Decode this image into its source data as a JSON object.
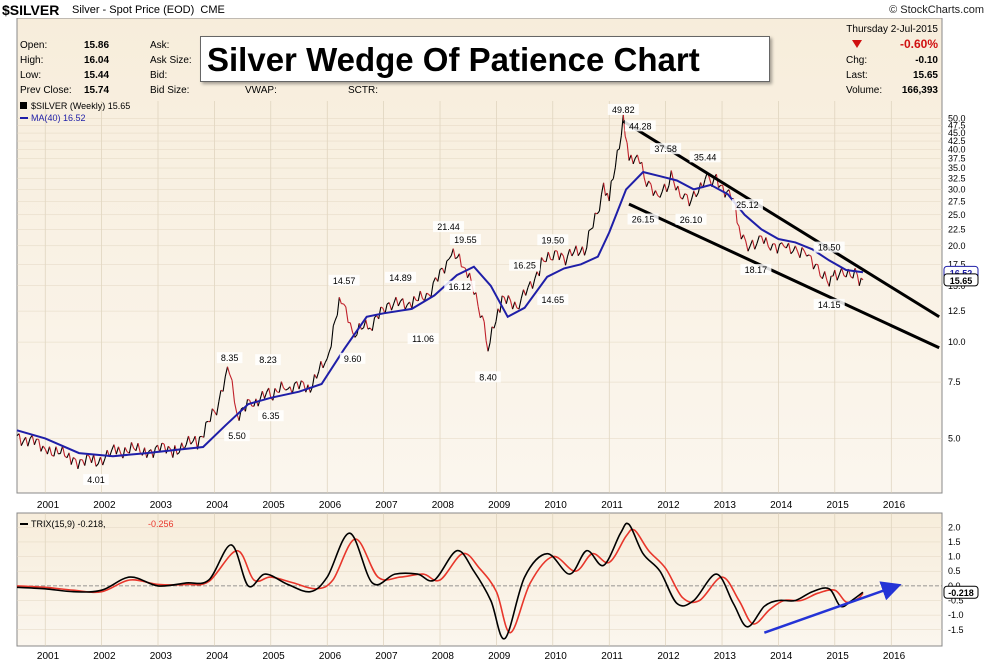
{
  "header": {
    "symbol": "$SILVER",
    "description": "Silver - Spot Price (EOD)",
    "exchange": "CME",
    "brand": "© StockCharts.com"
  },
  "quote_panel": {
    "open_label": "Open:",
    "open": "15.86",
    "high_label": "High:",
    "high": "16.04",
    "low_label": "Low:",
    "low": "15.44",
    "prev_close_label": "Prev Close:",
    "prev_close": "15.74",
    "ask_label": "Ask:",
    "ask_size_label": "Ask Size:",
    "bid_label": "Bid:",
    "bid_size_label": "Bid Size:",
    "vwap_label": "VWAP:",
    "sctr_label": "SCTR:",
    "date": "Thursday  2-Jul-2015",
    "pct_change": "-0.60%",
    "chg_label": "Chg:",
    "chg": "-0.10",
    "last_label": "Last:",
    "last": "15.65",
    "volume_label": "Volume:",
    "volume": "166,393"
  },
  "title_box": "Silver Wedge Of Patience Chart",
  "legend": {
    "series_main": "$SILVER (Weekly) 15.65",
    "series_ma": "MA(40) 16.52",
    "trix_label": "TRIX(15,9) -0.218,",
    "trix_signal": "-0.256"
  },
  "colors": {
    "background_top": "#f7eddb",
    "background_bottom": "#fbf6ee",
    "price_down": "#c0202a",
    "price_up": "#000000",
    "ma": "#1f1fa8",
    "trix": "#000000",
    "trix_signal": "#e8362b",
    "arrow": "#2433d6",
    "negative": "#d01010"
  },
  "chart_data": [
    {
      "type": "line",
      "title": "$SILVER (Weekly)",
      "scale": "log",
      "ylim": [
        3.5,
        52
      ],
      "x_range": [
        2000.5,
        2016.9
      ],
      "x_ticks": [
        "2001",
        "2002",
        "2003",
        "2004",
        "2005",
        "2006",
        "2007",
        "2008",
        "2009",
        "2010",
        "2011",
        "2012",
        "2013",
        "2014",
        "2015",
        "2016"
      ],
      "y_ticks": [
        "50.0",
        "47.5",
        "45.0",
        "42.5",
        "40.0",
        "37.5",
        "35.0",
        "32.5",
        "30.0",
        "27.5",
        "25.0",
        "22.5",
        "20.0",
        "17.5",
        "15.0",
        "12.5",
        "10.0",
        "7.5",
        "5.0"
      ],
      "last_value_labels": [
        "16.52",
        "15.65"
      ],
      "series": [
        {
          "name": "$SILVER (Weekly)",
          "x": [
            2000.5,
            2001.0,
            2001.5,
            2001.9,
            2002.3,
            2002.8,
            2003.3,
            2003.7,
            2004.0,
            2004.27,
            2004.4,
            2004.7,
            2005.0,
            2005.3,
            2005.7,
            2006.0,
            2006.25,
            2006.45,
            2006.8,
            2007.1,
            2007.5,
            2007.8,
            2008.2,
            2008.45,
            2008.75,
            2008.85,
            2009.1,
            2009.4,
            2009.8,
            2010.0,
            2010.3,
            2010.6,
            2010.9,
            2011.0,
            2011.25,
            2011.35,
            2011.5,
            2011.7,
            2011.9,
            2012.1,
            2012.3,
            2012.5,
            2012.7,
            2012.9,
            2013.2,
            2013.3,
            2013.5,
            2013.7,
            2013.9,
            2014.1,
            2014.3,
            2014.5,
            2014.7,
            2014.9,
            2015.0,
            2015.2,
            2015.4,
            2015.5
          ],
          "y": [
            5.1,
            4.7,
            4.3,
            4.25,
            4.6,
            4.6,
            4.65,
            4.9,
            6.0,
            8.35,
            6.0,
            6.5,
            6.9,
            7.2,
            7.3,
            8.8,
            14.0,
            10.5,
            11.5,
            13.0,
            13.3,
            13.9,
            19.0,
            17.0,
            12.0,
            9.5,
            13.5,
            13.0,
            17.5,
            18.5,
            18.5,
            20.0,
            30.0,
            27.5,
            49.82,
            36.0,
            38.0,
            30.5,
            28.5,
            32.5,
            28.5,
            28.0,
            33.0,
            32.0,
            28.5,
            22.5,
            20.0,
            21.5,
            20.0,
            20.5,
            19.5,
            19.5,
            17.0,
            15.8,
            16.5,
            16.8,
            16.2,
            15.65
          ]
        },
        {
          "name": "MA(40)",
          "x": [
            2000.5,
            2001.0,
            2001.6,
            2002.2,
            2002.8,
            2003.3,
            2003.8,
            2004.2,
            2004.6,
            2005.0,
            2005.5,
            2005.9,
            2006.3,
            2006.7,
            2007.0,
            2007.5,
            2007.9,
            2008.3,
            2008.6,
            2008.9,
            2009.2,
            2009.5,
            2009.9,
            2010.2,
            2010.5,
            2010.8,
            2011.0,
            2011.3,
            2011.6,
            2011.9,
            2012.2,
            2012.5,
            2012.8,
            2013.1,
            2013.4,
            2013.7,
            2014.0,
            2014.3,
            2014.6,
            2014.9,
            2015.2,
            2015.5
          ],
          "y": [
            5.3,
            5.0,
            4.5,
            4.4,
            4.5,
            4.6,
            4.7,
            5.5,
            6.4,
            6.7,
            7.0,
            7.4,
            9.5,
            12.0,
            12.3,
            12.7,
            14.0,
            16.2,
            17.2,
            15.0,
            12.0,
            12.8,
            16.0,
            17.0,
            17.5,
            18.5,
            22.0,
            30.0,
            34.0,
            33.0,
            32.0,
            30.0,
            31.0,
            29.0,
            25.0,
            22.5,
            21.0,
            20.5,
            19.5,
            18.0,
            16.8,
            16.52
          ]
        }
      ],
      "annotations": [
        "4.01",
        "8.35",
        "5.50",
        "8.23",
        "6.35",
        "14.57",
        "9.60",
        "14.89",
        "11.06",
        "21.44",
        "19.55",
        "16.12",
        "8.40",
        "16.25",
        "19.50",
        "14.65",
        "49.82",
        "44.28",
        "37.58",
        "35.44",
        "26.15",
        "26.10",
        "25.12",
        "18.17",
        "18.50",
        "14.15"
      ],
      "trendlines": [
        {
          "x": [
            2011.25,
            2016.85
          ],
          "y": [
            49.0,
            12.0
          ]
        },
        {
          "x": [
            2011.35,
            2016.85
          ],
          "y": [
            27.0,
            9.6
          ]
        }
      ],
      "grid": true
    },
    {
      "type": "line",
      "title": "TRIX(15,9)",
      "ylim": [
        -1.85,
        2.25
      ],
      "x_range": [
        2000.5,
        2016.9
      ],
      "y_ticks": [
        "2.0",
        "1.5",
        "1.0",
        "0.5",
        "0.0",
        "-0.5",
        "-1.0",
        "-1.5"
      ],
      "last_value_label": "-0.218",
      "series": [
        {
          "name": "TRIX(15,9)",
          "x": [
            2000.5,
            2001.0,
            2001.5,
            2002.0,
            2002.5,
            2003.0,
            2003.5,
            2003.9,
            2004.3,
            2004.6,
            2004.9,
            2005.3,
            2005.7,
            2006.0,
            2006.4,
            2006.8,
            2007.2,
            2007.6,
            2007.9,
            2008.3,
            2008.6,
            2008.9,
            2009.15,
            2009.5,
            2009.9,
            2010.3,
            2010.6,
            2010.9,
            2011.2,
            2011.35,
            2011.6,
            2011.9,
            2012.2,
            2012.5,
            2012.9,
            2013.2,
            2013.45,
            2013.75,
            2014.0,
            2014.3,
            2014.6,
            2014.9,
            2015.1,
            2015.3,
            2015.5
          ],
          "y": [
            -0.05,
            -0.1,
            -0.2,
            -0.15,
            0.3,
            0.0,
            0.1,
            0.2,
            1.4,
            0.0,
            0.4,
            0.05,
            -0.2,
            0.3,
            1.8,
            0.1,
            0.4,
            0.4,
            0.2,
            1.2,
            0.5,
            -0.5,
            -1.8,
            0.3,
            1.1,
            0.4,
            1.2,
            0.7,
            1.8,
            2.1,
            1.1,
            0.5,
            -0.6,
            -0.5,
            0.4,
            -0.6,
            -1.4,
            -0.7,
            -0.5,
            -0.5,
            -0.2,
            -0.1,
            -0.7,
            -0.5,
            -0.218
          ]
        },
        {
          "name": "signal",
          "x": [
            2000.5,
            2001.0,
            2001.5,
            2002.0,
            2002.5,
            2003.0,
            2003.5,
            2003.9,
            2004.4,
            2004.7,
            2005.0,
            2005.4,
            2005.8,
            2006.1,
            2006.5,
            2006.9,
            2007.3,
            2007.7,
            2008.0,
            2008.4,
            2008.7,
            2009.0,
            2009.25,
            2009.6,
            2010.0,
            2010.4,
            2010.7,
            2011.0,
            2011.3,
            2011.45,
            2011.7,
            2012.0,
            2012.3,
            2012.6,
            2013.0,
            2013.3,
            2013.55,
            2013.85,
            2014.1,
            2014.4,
            2014.7,
            2015.0,
            2015.2,
            2015.4,
            2015.5
          ],
          "y": [
            0.0,
            -0.05,
            -0.15,
            -0.2,
            0.2,
            0.05,
            0.05,
            0.15,
            1.2,
            0.2,
            0.3,
            0.1,
            -0.1,
            0.2,
            1.6,
            0.3,
            0.3,
            0.4,
            0.2,
            1.1,
            0.6,
            -0.2,
            -1.6,
            0.1,
            1.0,
            0.5,
            1.1,
            0.8,
            1.7,
            1.9,
            1.2,
            0.6,
            -0.4,
            -0.5,
            0.3,
            -0.5,
            -1.3,
            -0.8,
            -0.5,
            -0.5,
            -0.25,
            -0.15,
            -0.55,
            -0.45,
            -0.256
          ]
        }
      ],
      "trendline_arrow": {
        "x": [
          2013.75,
          2016.1
        ],
        "y": [
          -1.6,
          0.0
        ]
      },
      "grid": true
    }
  ]
}
